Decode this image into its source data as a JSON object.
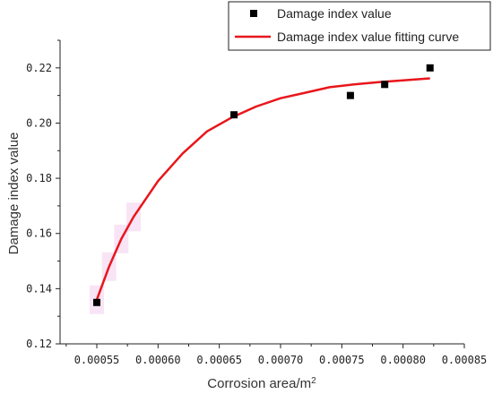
{
  "chart_data": {
    "type": "scatter",
    "xlabel": "Corrosion area/m",
    "xlabel_sup": "2",
    "ylabel": "Damage index value",
    "xlim": [
      0.00052,
      0.00085
    ],
    "ylim": [
      0.12,
      0.23
    ],
    "x_ticks": [
      "0.00055",
      "0.00060",
      "0.00065",
      "0.00070",
      "0.00075",
      "0.00080",
      "0.00085"
    ],
    "x_tick_values": [
      0.00055,
      0.0006,
      0.00065,
      0.0007,
      0.00075,
      0.0008,
      0.00085
    ],
    "y_ticks": [
      "0.12",
      "0.14",
      "0.16",
      "0.18",
      "0.20",
      "0.22"
    ],
    "y_tick_values": [
      0.12,
      0.14,
      0.16,
      0.18,
      0.2,
      0.22
    ],
    "legend_position": "top-right",
    "grid": false,
    "series": [
      {
        "name": "Damage index value",
        "kind": "scatter",
        "color": "#000000",
        "x": [
          0.00055,
          0.000662,
          0.000757,
          0.000785,
          0.000822
        ],
        "y": [
          0.135,
          0.203,
          0.21,
          0.214,
          0.22
        ]
      },
      {
        "name": "Damage index value fitting curve",
        "kind": "line",
        "color": "#e8161b",
        "x": [
          0.00055,
          0.00056,
          0.00057,
          0.00058,
          0.0006,
          0.00062,
          0.00064,
          0.00066,
          0.00068,
          0.0007,
          0.00072,
          0.00074,
          0.00076,
          0.00078,
          0.0008,
          0.000822
        ],
        "y": [
          0.136,
          0.148,
          0.158,
          0.166,
          0.179,
          0.189,
          0.197,
          0.202,
          0.206,
          0.209,
          0.211,
          0.213,
          0.214,
          0.2148,
          0.2155,
          0.2162
        ]
      }
    ]
  }
}
